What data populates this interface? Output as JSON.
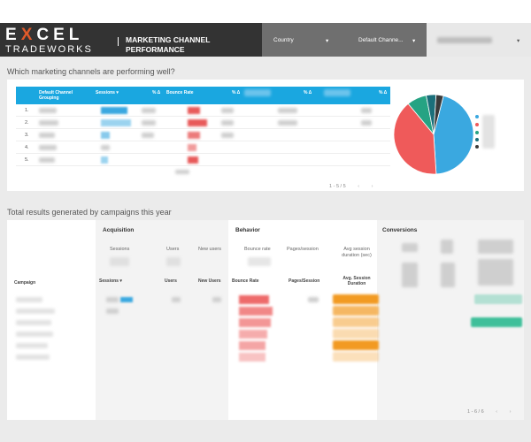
{
  "header": {
    "logo_top_a": "E",
    "logo_top_x": "X",
    "logo_top_b": "CEL",
    "logo_bottom": "TRADEWORKS",
    "title": "MARKETING CHANNEL PERFORMANCE",
    "filters": [
      {
        "label": "Country",
        "arrow": "▾"
      },
      {
        "label": "Default Channe...",
        "arrow": "▾"
      },
      {
        "label": "",
        "arrow": "▾"
      }
    ]
  },
  "section1": {
    "title": "Which marketing channels are performing well?",
    "table": {
      "columns": [
        "Default Channel Grouping",
        "Sessions ▾",
        "% Δ",
        "Bounce Rate",
        "% Δ",
        "% Δ",
        "% Δ"
      ],
      "rows": [
        "1.",
        "2.",
        "3.",
        "4.",
        "5."
      ],
      "pager": "1 - 5 / 5",
      "prev": "‹",
      "next": "›"
    },
    "pie": {
      "slices": [
        {
          "value": 45,
          "color": "#3aa8e0"
        },
        {
          "value": 40,
          "color": "#ef5a5a"
        },
        {
          "value": 8,
          "color": "#26a383"
        },
        {
          "value": 4,
          "color": "#1b6f7a"
        },
        {
          "value": 3,
          "color": "#3a3a3a"
        }
      ]
    }
  },
  "section2": {
    "title": "Total results generated by campaigns this year",
    "groups": [
      "Acquisition",
      "Behavior",
      "Conversions"
    ],
    "sub_labels": [
      "Sessions",
      "Users",
      "New users",
      "Bounce rate",
      "Pages/session",
      "Avg session duration (sec)"
    ],
    "columns": [
      "Campaign",
      "Sessions ▾",
      "Users",
      "New Users",
      "Bounce Rate",
      "Pages/Session",
      "Avg. Session Duration"
    ],
    "pager": "1 - 6 / 6",
    "prev": "‹",
    "next": "›"
  },
  "colors": {
    "accent_blue": "#1aa7e0",
    "header_dark": "#333333",
    "header_mid": "#6f6f6f",
    "logo_x": "#e05a2a"
  }
}
